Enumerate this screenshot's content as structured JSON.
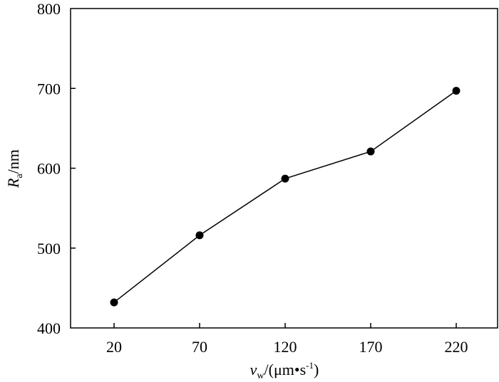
{
  "chart_data": {
    "type": "line",
    "x": [
      20,
      70,
      120,
      170,
      220
    ],
    "y": [
      432,
      516,
      587,
      621,
      697
    ],
    "xticks": [
      "20",
      "70",
      "120",
      "170",
      "220"
    ],
    "yticks": [
      "400",
      "500",
      "600",
      "700",
      "800"
    ],
    "ylim": [
      400,
      800
    ],
    "xlabel": {
      "symbol": "v",
      "subscript": "w",
      "unit_open": "/(μm",
      "unit_mid": "•s",
      "superscript": "-1",
      "unit_close": ")"
    },
    "ylabel": {
      "symbol": "R",
      "subscript": "a",
      "unit": "/nm"
    },
    "grid": false,
    "marker": "filled-circle",
    "line_color": "#000000"
  }
}
